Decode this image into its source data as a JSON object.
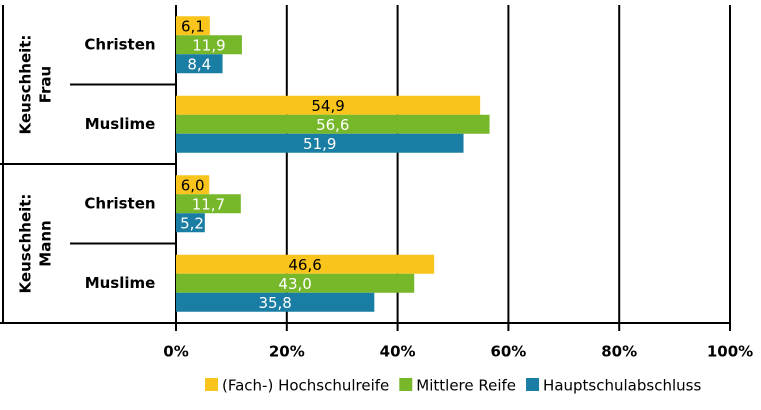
{
  "chart_data": {
    "type": "bar",
    "groups": [
      {
        "label": [
          "Keuschheit:",
          "Frau"
        ]
      },
      {
        "label": [
          "Keuschheit:",
          "Mann"
        ]
      }
    ],
    "categories": [
      "Christen",
      "Muslime",
      "Christen",
      "Muslime"
    ],
    "series": [
      {
        "name": "(Fach-) Hochschulreife",
        "color": "#f9c41c",
        "label_color": "#000000",
        "values": [
          6.1,
          54.9,
          6.0,
          46.6
        ],
        "value_labels": [
          "6,1",
          "54,9",
          "6,0",
          "46,6"
        ]
      },
      {
        "name": "Mittlere Reife",
        "color": "#76b82a",
        "label_color": "#ffffff",
        "values": [
          11.9,
          56.6,
          11.7,
          43.0
        ],
        "value_labels": [
          "11,9",
          "56,6",
          "11,7",
          "43,0"
        ]
      },
      {
        "name": "Hauptschulabschluss",
        "color": "#1a7da3",
        "label_color": "#ffffff",
        "values": [
          8.4,
          51.9,
          5.2,
          35.8
        ],
        "value_labels": [
          "8,4",
          "51,9",
          "5,2",
          "35,8"
        ]
      }
    ],
    "xlim": [
      0,
      100
    ],
    "xticks": [
      {
        "value": 0,
        "label": "0%"
      },
      {
        "value": 20,
        "label": "20%"
      },
      {
        "value": 40,
        "label": "40%"
      },
      {
        "value": 60,
        "label": "60%"
      },
      {
        "value": 80,
        "label": "80%"
      },
      {
        "value": 100,
        "label": "100%"
      }
    ],
    "grid": true
  }
}
